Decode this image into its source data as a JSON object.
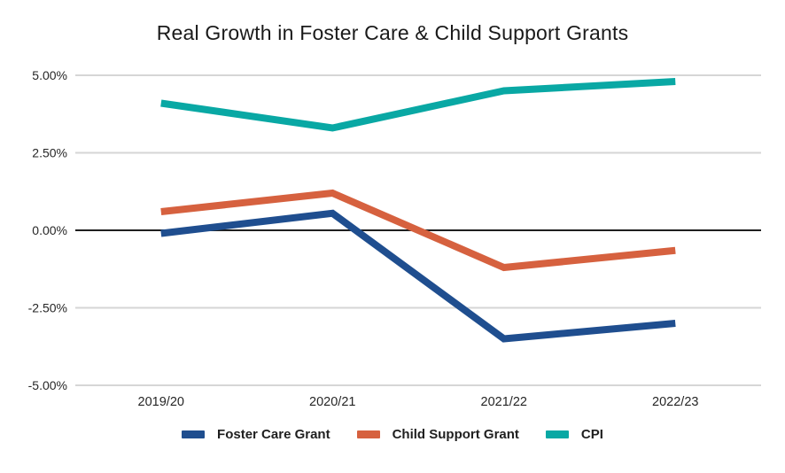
{
  "title": "Real Growth in Foster Care & Child Support Grants",
  "colors": {
    "background": "#ffffff",
    "grid": "#d6d6d6",
    "zero_axis": "#1f1f1f",
    "text": "#262626",
    "foster_care": "#1f4e8f",
    "child_support": "#d6613f",
    "cpi": "#09a8a4"
  },
  "chart_data": {
    "type": "line",
    "title": "Real Growth in Foster Care & Child Support Grants",
    "categories": [
      "2019/20",
      "2020/21",
      "2021/22",
      "2022/23"
    ],
    "series": [
      {
        "name": "Foster Care Grant",
        "color": "#1f4e8f",
        "values": [
          -0.1,
          0.55,
          -3.5,
          -3.0
        ]
      },
      {
        "name": "Child Support Grant",
        "color": "#d6613f",
        "values": [
          0.6,
          1.2,
          -1.2,
          -0.65
        ]
      },
      {
        "name": "CPI",
        "color": "#09a8a4",
        "values": [
          4.1,
          3.3,
          4.5,
          4.8
        ]
      }
    ],
    "yticks": [
      {
        "label": "5.00%",
        "value": 5
      },
      {
        "label": "2.50%",
        "value": 2.5
      },
      {
        "label": "0.00%",
        "value": 0
      },
      {
        "label": "-2.50%",
        "value": -2.5
      },
      {
        "label": "-5.00%",
        "value": -5
      }
    ],
    "ylim": [
      -5,
      5
    ],
    "xlabel": "",
    "ylabel": "",
    "grid": true,
    "legend_position": "bottom",
    "line_width": 8
  }
}
